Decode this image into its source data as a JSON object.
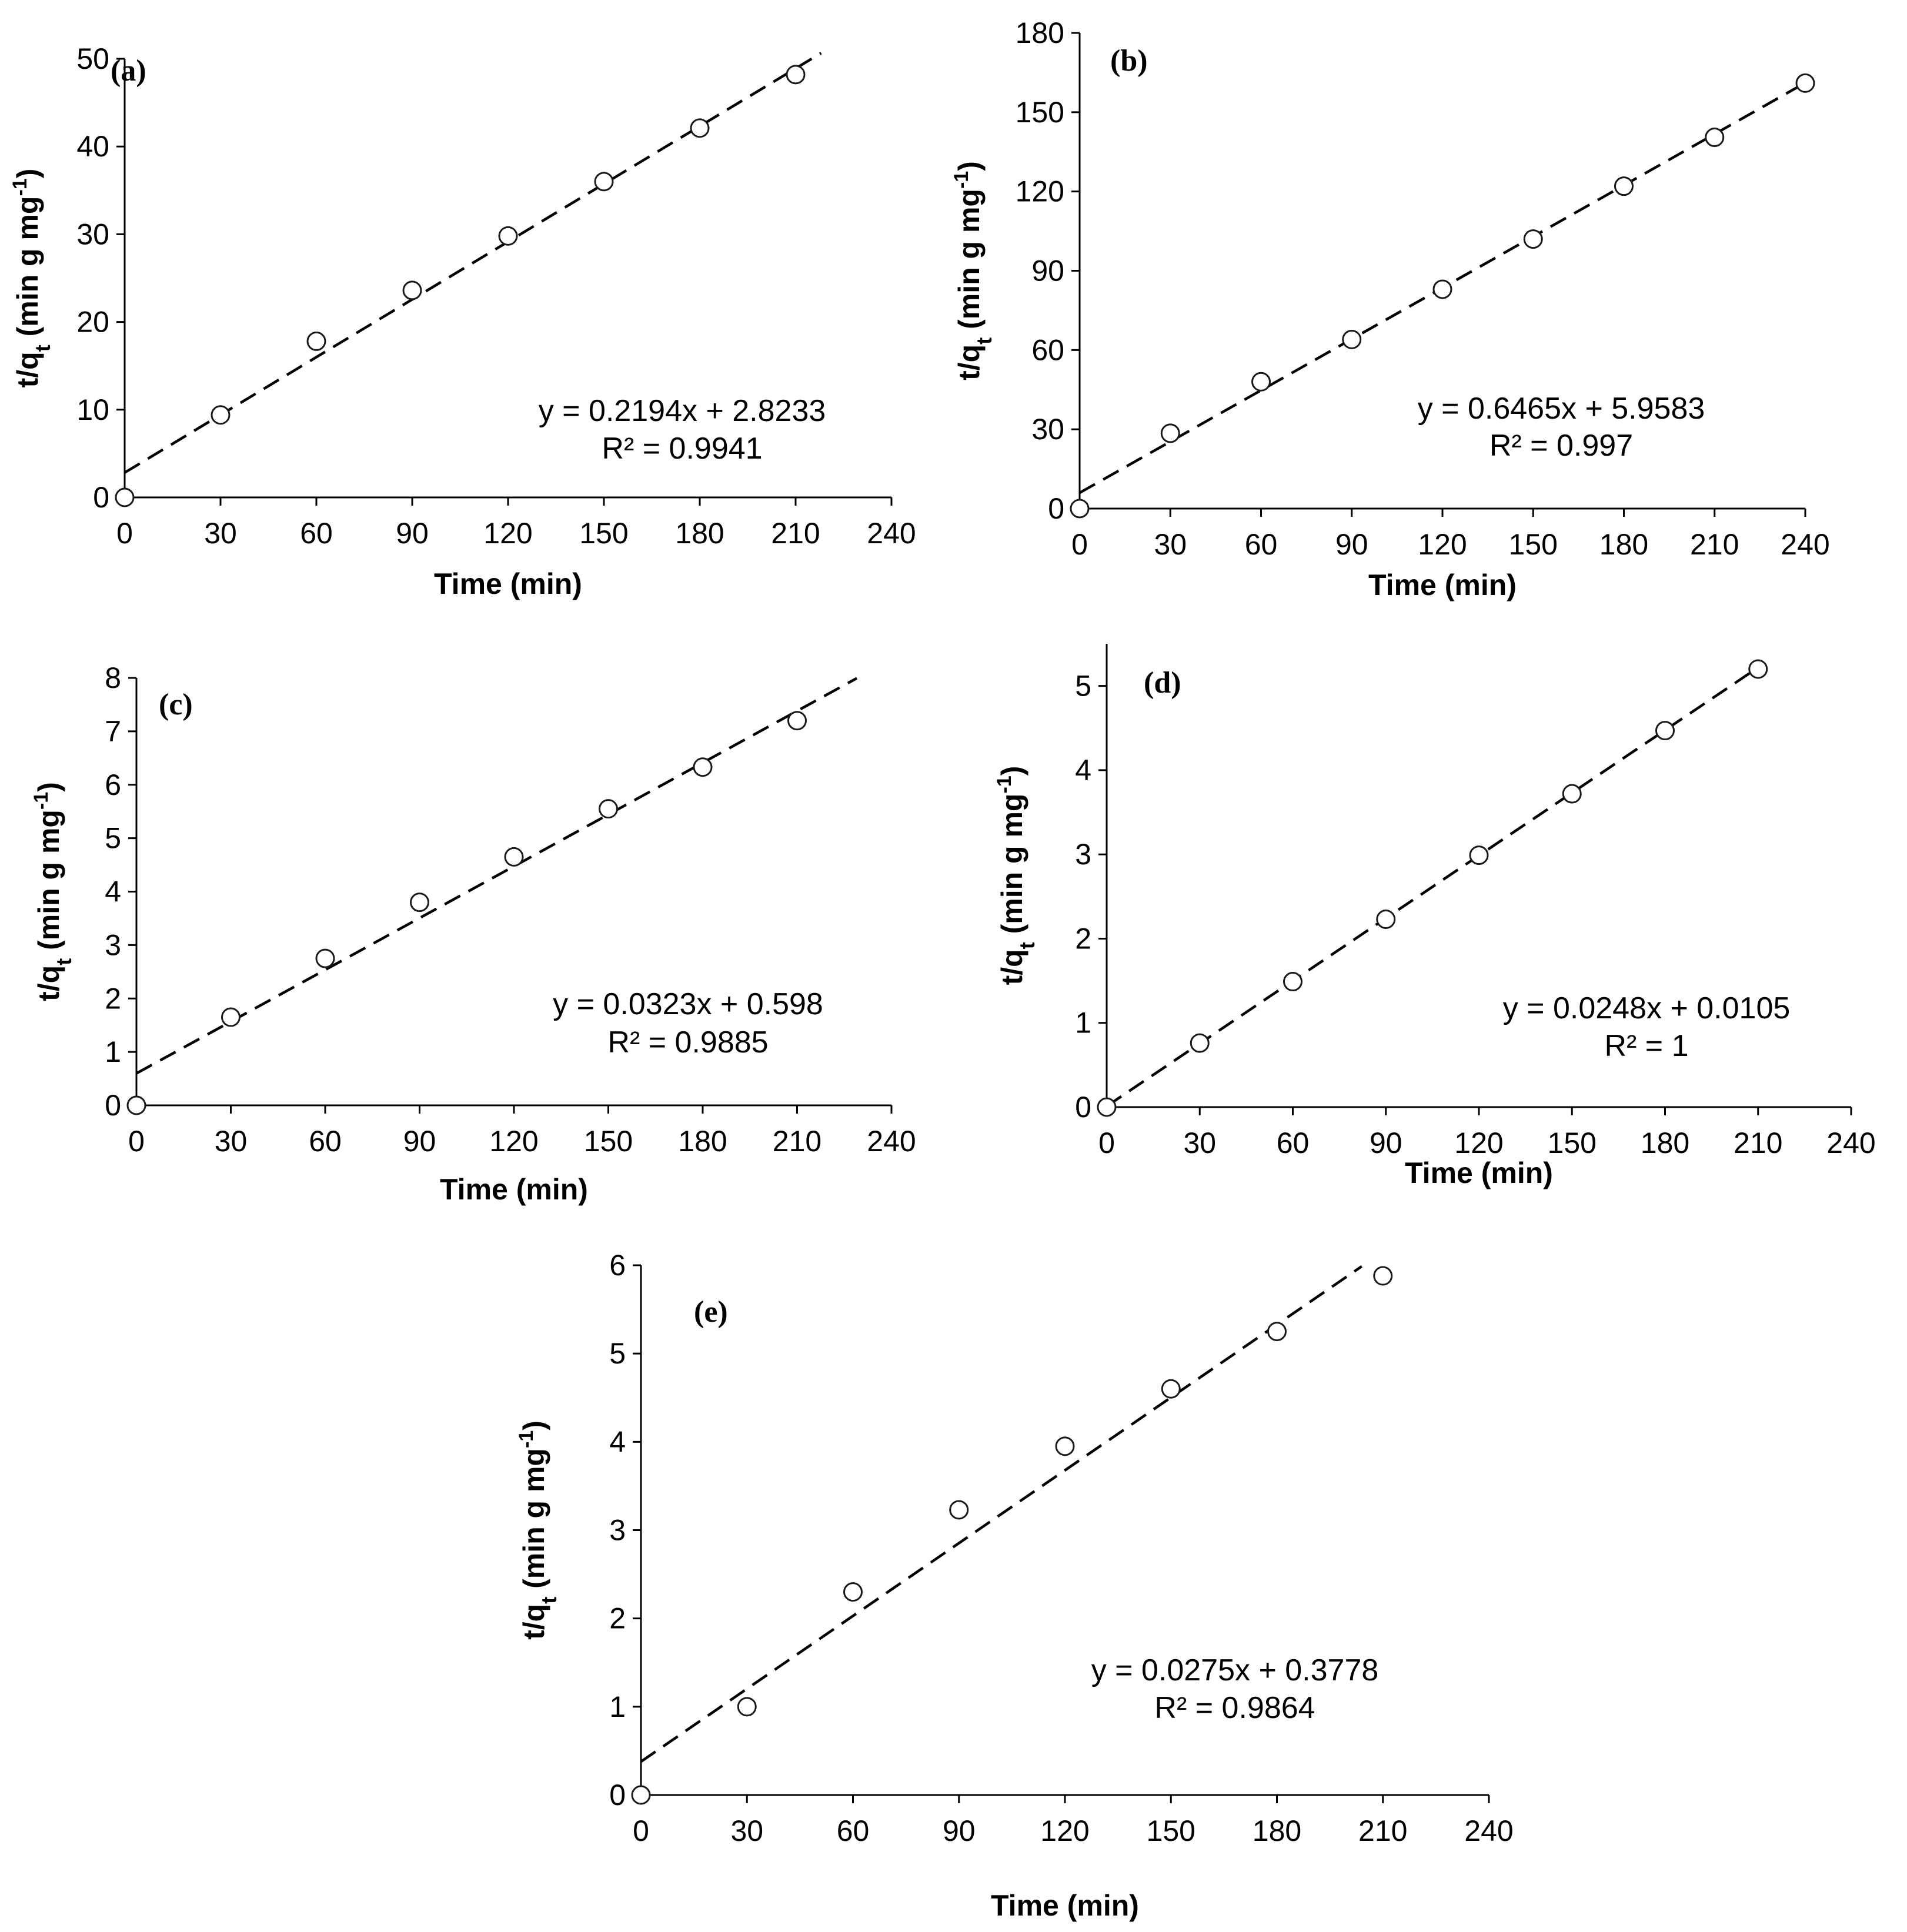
{
  "chart_data": [
    {
      "id": "a",
      "type": "scatter",
      "panel_label": "(a)",
      "xlabel": "Time (min)",
      "ylabel_main": "t/q",
      "ylabel_sub": "t",
      "ylabel_units": " (min g mg",
      "ylabel_exp": "-1",
      "ylabel_close": ")",
      "xlim": [
        0,
        240
      ],
      "ylim": [
        0,
        50
      ],
      "xticks": [
        0,
        30,
        60,
        90,
        120,
        150,
        180,
        210,
        240
      ],
      "yticks": [
        0,
        10,
        20,
        30,
        40,
        50
      ],
      "points": {
        "x": [
          0,
          30,
          60,
          90,
          120,
          150,
          180,
          210
        ],
        "y": [
          0,
          9.4,
          17.8,
          23.6,
          29.8,
          36.0,
          42.1,
          48.2
        ]
      },
      "fit": {
        "slope": 0.2194,
        "intercept": 2.8233,
        "x_end": 218
      },
      "equation": "y = 0.2194x + 2.8233",
      "r2": "R² = 0.9941"
    },
    {
      "id": "b",
      "type": "scatter",
      "panel_label": "(b)",
      "xlabel": "Time (min)",
      "ylabel_main": "t/q",
      "ylabel_sub": "t",
      "ylabel_units": " (min g mg",
      "ylabel_exp": "-1",
      "ylabel_close": ")",
      "xlim": [
        0,
        240
      ],
      "ylim": [
        0,
        180
      ],
      "xticks": [
        0,
        30,
        60,
        90,
        120,
        150,
        180,
        210,
        240
      ],
      "yticks": [
        0,
        30,
        60,
        90,
        120,
        150,
        180
      ],
      "points": {
        "x": [
          0,
          30,
          60,
          90,
          120,
          150,
          180,
          210,
          240
        ],
        "y": [
          0,
          28.5,
          48.0,
          64.0,
          83.0,
          102.0,
          122.0,
          140.5,
          161.0
        ]
      },
      "fit": {
        "slope": 0.6465,
        "intercept": 5.9583,
        "x_end": 240
      },
      "equation": "y = 0.6465x + 5.9583",
      "r2": "R² = 0.997"
    },
    {
      "id": "c",
      "type": "scatter",
      "panel_label": "(c)",
      "xlabel": "Time (min)",
      "ylabel_main": "t/q",
      "ylabel_sub": "t",
      "ylabel_units": " (min g mg",
      "ylabel_exp": "-1",
      "ylabel_close": ")",
      "xlim": [
        0,
        240
      ],
      "ylim": [
        0,
        8
      ],
      "xticks": [
        0,
        30,
        60,
        90,
        120,
        150,
        180,
        210,
        240
      ],
      "yticks": [
        0,
        1,
        2,
        3,
        4,
        5,
        6,
        7,
        8
      ],
      "points": {
        "x": [
          0,
          30,
          60,
          90,
          120,
          150,
          180,
          210
        ],
        "y": [
          0,
          1.65,
          2.75,
          3.8,
          4.65,
          5.55,
          6.33,
          7.2
        ]
      },
      "fit": {
        "slope": 0.0323,
        "intercept": 0.598,
        "x_end": 229
      },
      "equation": "y = 0.0323x + 0.598",
      "r2": "R² = 0.9885"
    },
    {
      "id": "d",
      "type": "scatter",
      "panel_label": "(d)",
      "xlabel": "Time (min)",
      "ylabel_main": "t/q",
      "ylabel_sub": "t",
      "ylabel_units": " (min g mg",
      "ylabel_exp": "-1",
      "ylabel_close": ")",
      "xlim": [
        0,
        240
      ],
      "ylim": [
        0,
        5.5
      ],
      "xticks": [
        0,
        30,
        60,
        90,
        120,
        150,
        180,
        210,
        240
      ],
      "yticks": [
        0,
        1,
        2,
        3,
        4,
        5
      ],
      "points": {
        "x": [
          0,
          30,
          60,
          90,
          120,
          150,
          180,
          210
        ],
        "y": [
          0,
          0.76,
          1.49,
          2.23,
          2.99,
          3.72,
          4.47,
          5.2
        ]
      },
      "fit": {
        "slope": 0.0248,
        "intercept": 0.0105,
        "x_end": 211
      },
      "equation": "y = 0.0248x + 0.0105",
      "r2": "R² = 1"
    },
    {
      "id": "e",
      "type": "scatter",
      "panel_label": "(e)",
      "xlabel": "Time (min)",
      "ylabel_main": "t/q",
      "ylabel_sub": "t",
      "ylabel_units": " (min g mg",
      "ylabel_exp": "-1",
      "ylabel_close": ")",
      "xlim": [
        0,
        240
      ],
      "ylim": [
        0,
        6
      ],
      "xticks": [
        0,
        30,
        60,
        90,
        120,
        150,
        180,
        210,
        240
      ],
      "yticks": [
        0,
        1,
        2,
        3,
        4,
        5,
        6
      ],
      "points": {
        "x": [
          0,
          30,
          60,
          90,
          120,
          150,
          180,
          210
        ],
        "y": [
          0,
          1.0,
          2.3,
          3.23,
          3.95,
          4.6,
          5.25,
          5.88
        ]
      },
      "fit": {
        "slope": 0.0275,
        "intercept": 0.3778,
        "x_end": 204
      },
      "equation": "y = 0.0275x + 0.3778",
      "r2": "R² = 0.9864"
    }
  ]
}
